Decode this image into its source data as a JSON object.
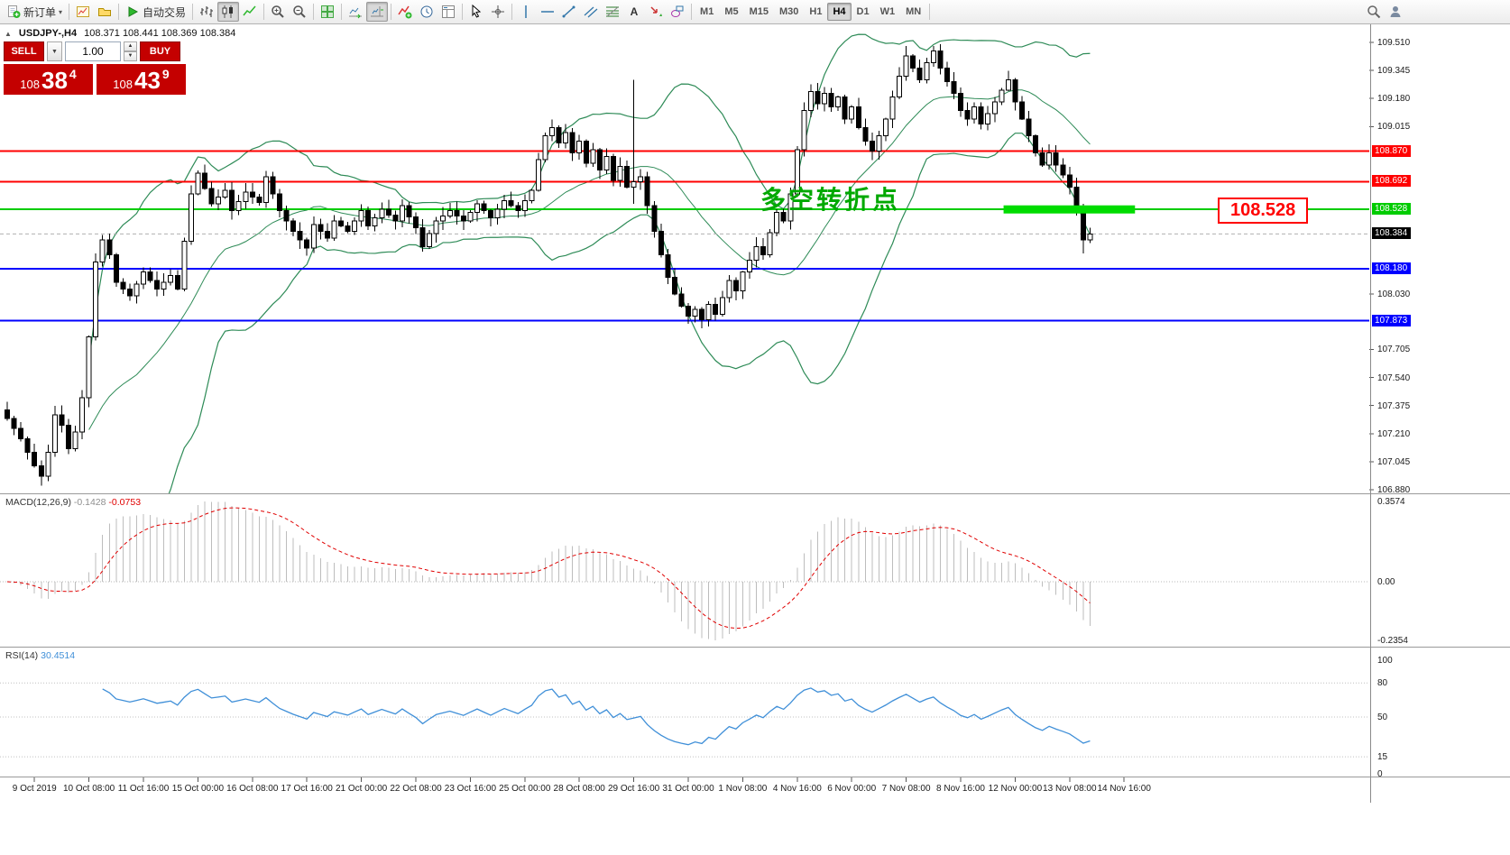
{
  "toolbar": {
    "timeframes": [
      "M1",
      "M5",
      "M15",
      "M30",
      "H1",
      "H4",
      "D1",
      "W1",
      "MN"
    ],
    "active_timeframe": "H4",
    "groups": [
      {
        "items": [
          {
            "name": "new-order",
            "icon": "doc",
            "label": "新订单",
            "dropdown": true
          }
        ]
      },
      {
        "items": [
          {
            "name": "new-chart",
            "icon": "chartplus"
          },
          {
            "name": "profiles",
            "icon": "folder"
          }
        ]
      },
      {
        "items": [
          {
            "name": "auto-trading",
            "icon": "play",
            "label": "自动交易"
          }
        ]
      },
      {
        "items": [
          {
            "name": "bar-chart-mode",
            "icon": "bars"
          },
          {
            "name": "candlestick-mode",
            "icon": "candles",
            "active": true
          },
          {
            "name": "line-chart-mode",
            "icon": "line"
          }
        ]
      },
      {
        "items": [
          {
            "name": "zoom-in",
            "icon": "zoomin"
          },
          {
            "name": "zoom-out",
            "icon": "zoomout"
          }
        ]
      },
      {
        "items": [
          {
            "name": "tile-windows",
            "icon": "grid"
          }
        ]
      },
      {
        "items": [
          {
            "name": "auto-scroll",
            "icon": "autoscroll"
          },
          {
            "name": "chart-shift",
            "icon": "shift",
            "active": true
          }
        ]
      },
      {
        "items": [
          {
            "name": "indicators-list",
            "icon": "indicator"
          },
          {
            "name": "periods",
            "icon": "clock"
          },
          {
            "name": "templates",
            "icon": "template"
          }
        ]
      },
      {
        "items": [
          {
            "name": "cursor-tool",
            "icon": "cursor"
          },
          {
            "name": "crosshair-tool",
            "icon": "crosshair"
          }
        ]
      },
      {
        "items": [
          {
            "name": "vertical-line-tool",
            "icon": "vline"
          },
          {
            "name": "horizontal-line-tool",
            "icon": "hline"
          },
          {
            "name": "trendline-tool",
            "icon": "tline"
          },
          {
            "name": "channel-tool",
            "icon": "channel"
          },
          {
            "name": "fibonacci-tool",
            "icon": "fibo"
          },
          {
            "name": "text-tool",
            "icon": "textA"
          },
          {
            "name": "arrows-tool",
            "icon": "arrowobj"
          },
          {
            "name": "shapes-tool",
            "icon": "shapes"
          }
        ]
      },
      {
        "timeframes": true
      },
      {
        "right": true,
        "items": [
          {
            "name": "search",
            "icon": "magnifier"
          },
          {
            "name": "community",
            "icon": "person"
          }
        ]
      }
    ]
  },
  "chart_header": {
    "symbol_period": "USDJPY-,H4",
    "ohlc": "108.371 108.441 108.369 108.384"
  },
  "trade_panel": {
    "sell_label": "SELL",
    "buy_label": "BUY",
    "lot_size": "1.00",
    "sell_price": {
      "big": "108",
      "pips": "38",
      "sup": "4"
    },
    "buy_price": {
      "big": "108",
      "pips": "43",
      "sup": "9"
    }
  },
  "annotations": {
    "pivot_text": "多空转折点",
    "pivot_label": "108.528"
  },
  "indicators": {
    "macd": {
      "label": "MACD(12,26,9)",
      "value_main": "-0.1428",
      "value_signal": "-0.0753",
      "axis": [
        "0.3574",
        "0.00",
        "-0.2354"
      ]
    },
    "rsi": {
      "label": "RSI(14)",
      "value": "30.4514",
      "axis": [
        "100",
        "80",
        "50",
        "15",
        "0"
      ],
      "levels": [
        80,
        50,
        15
      ]
    }
  },
  "price_axis": {
    "plain": [
      "109.510",
      "109.345",
      "109.180",
      "109.015",
      "108.030",
      "107.705",
      "107.540",
      "107.375",
      "107.210",
      "107.045",
      "106.880"
    ],
    "levels": [
      {
        "label": "108.870",
        "color": "#FF0000",
        "width": 2
      },
      {
        "label": "108.692",
        "color": "#FF0000",
        "width": 2
      },
      {
        "label": "108.528",
        "color": "#00CC00",
        "width": 2
      },
      {
        "label": "108.180",
        "color": "#0000FF",
        "width": 2
      },
      {
        "label": "107.873",
        "color": "#0000FF",
        "width": 2
      }
    ],
    "current": {
      "label": "108.384",
      "color": "#000000"
    }
  },
  "time_axis": {
    "first_label_bar": 4,
    "bars_per_label": 8,
    "labels": [
      "9 Oct 2019",
      "10 Oct 08:00",
      "11 Oct 16:00",
      "15 Oct 00:00",
      "16 Oct 08:00",
      "17 Oct 16:00",
      "21 Oct 00:00",
      "22 Oct 08:00",
      "23 Oct 16:00",
      "25 Oct 00:00",
      "28 Oct 08:00",
      "29 Oct 16:00",
      "31 Oct 00:00",
      "1 Nov 08:00",
      "4 Nov 16:00",
      "6 Nov 00:00",
      "7 Nov 08:00",
      "8 Nov 16:00",
      "12 Nov 00:00",
      "13 Nov 08:00",
      "14 Nov 16:00"
    ]
  },
  "colors": {
    "bull": "#FFFFFF",
    "bear": "#000000",
    "wick": "#000000",
    "bollinger": "#2E8B57",
    "macd_hist": "#BDBDBD",
    "macd_signal": "#E00000",
    "rsi": "#3F8FD8",
    "highlight": "#00DC00",
    "annotation_green": "#00A800",
    "label_red": "#FF0000",
    "panel_red": "#C40000",
    "current_dash": "#B0B0B0"
  },
  "chart_data": {
    "type": "candlestick",
    "symbol": "USDJPY-",
    "timeframe": "H4",
    "current_ohlc": {
      "open": 108.371,
      "high": 108.441,
      "low": 108.369,
      "close": 108.384
    },
    "bars_total": 160,
    "close_waypoints": [
      [
        0,
        107.3
      ],
      [
        2,
        107.18
      ],
      [
        4,
        107.02
      ],
      [
        5,
        106.96
      ],
      [
        6,
        107.1
      ],
      [
        7,
        107.32
      ],
      [
        8,
        107.26
      ],
      [
        9,
        107.12
      ],
      [
        10,
        107.22
      ],
      [
        11,
        107.42
      ],
      [
        12,
        107.78
      ],
      [
        13,
        108.22
      ],
      [
        14,
        108.35
      ],
      [
        15,
        108.26
      ],
      [
        16,
        108.1
      ],
      [
        18,
        108.02
      ],
      [
        20,
        108.16
      ],
      [
        22,
        108.06
      ],
      [
        24,
        108.14
      ],
      [
        25,
        108.06
      ],
      [
        26,
        108.34
      ],
      [
        27,
        108.62
      ],
      [
        28,
        108.74
      ],
      [
        30,
        108.56
      ],
      [
        32,
        108.64
      ],
      [
        33,
        108.52
      ],
      [
        35,
        108.63
      ],
      [
        37,
        108.57
      ],
      [
        38,
        108.72
      ],
      [
        40,
        108.52
      ],
      [
        42,
        108.4
      ],
      [
        44,
        108.3
      ],
      [
        45,
        108.44
      ],
      [
        47,
        108.36
      ],
      [
        48,
        108.46
      ],
      [
        50,
        108.4
      ],
      [
        52,
        108.52
      ],
      [
        53,
        108.43
      ],
      [
        55,
        108.53
      ],
      [
        57,
        108.46
      ],
      [
        58,
        108.55
      ],
      [
        60,
        108.42
      ],
      [
        61,
        108.31
      ],
      [
        63,
        108.46
      ],
      [
        65,
        108.52
      ],
      [
        67,
        108.46
      ],
      [
        69,
        108.56
      ],
      [
        71,
        108.48
      ],
      [
        73,
        108.58
      ],
      [
        75,
        108.52
      ],
      [
        77,
        108.64
      ],
      [
        78,
        108.82
      ],
      [
        79,
        108.96
      ],
      [
        80,
        109.01
      ],
      [
        81,
        108.92
      ],
      [
        82,
        108.98
      ],
      [
        83,
        108.86
      ],
      [
        84,
        108.93
      ],
      [
        85,
        108.8
      ],
      [
        86,
        108.88
      ],
      [
        87,
        108.76
      ],
      [
        88,
        108.84
      ],
      [
        89,
        108.7
      ],
      [
        90,
        108.78
      ],
      [
        91,
        108.66
      ],
      [
        92,
        108.69
      ],
      [
        93,
        108.72
      ],
      [
        94,
        108.55
      ],
      [
        95,
        108.4
      ],
      [
        96,
        108.26
      ],
      [
        97,
        108.13
      ],
      [
        98,
        108.03
      ],
      [
        99,
        107.96
      ],
      [
        100,
        107.9
      ],
      [
        101,
        107.94
      ],
      [
        102,
        107.88
      ],
      [
        103,
        107.97
      ],
      [
        104,
        107.91
      ],
      [
        105,
        108.01
      ],
      [
        106,
        108.11
      ],
      [
        107,
        108.05
      ],
      [
        108,
        108.16
      ],
      [
        109,
        108.23
      ],
      [
        110,
        108.31
      ],
      [
        111,
        108.26
      ],
      [
        112,
        108.39
      ],
      [
        113,
        108.51
      ],
      [
        114,
        108.46
      ],
      [
        115,
        108.62
      ],
      [
        116,
        108.88
      ],
      [
        117,
        109.11
      ],
      [
        118,
        109.22
      ],
      [
        119,
        109.15
      ],
      [
        120,
        109.21
      ],
      [
        121,
        109.13
      ],
      [
        122,
        109.19
      ],
      [
        123,
        109.06
      ],
      [
        124,
        109.13
      ],
      [
        125,
        109.01
      ],
      [
        126,
        108.93
      ],
      [
        127,
        108.87
      ],
      [
        128,
        108.96
      ],
      [
        129,
        109.06
      ],
      [
        130,
        109.19
      ],
      [
        131,
        109.31
      ],
      [
        132,
        109.43
      ],
      [
        133,
        109.36
      ],
      [
        134,
        109.29
      ],
      [
        135,
        109.39
      ],
      [
        136,
        109.46
      ],
      [
        137,
        109.36
      ],
      [
        138,
        109.28
      ],
      [
        139,
        109.21
      ],
      [
        140,
        109.11
      ],
      [
        141,
        109.06
      ],
      [
        142,
        109.13
      ],
      [
        143,
        109.03
      ],
      [
        144,
        109.09
      ],
      [
        145,
        109.16
      ],
      [
        146,
        109.23
      ],
      [
        147,
        109.29
      ],
      [
        148,
        109.16
      ],
      [
        149,
        109.06
      ],
      [
        150,
        108.96
      ],
      [
        151,
        108.86
      ],
      [
        152,
        108.79
      ],
      [
        153,
        108.86
      ],
      [
        154,
        108.79
      ],
      [
        155,
        108.73
      ],
      [
        156,
        108.66
      ],
      [
        157,
        108.52
      ],
      [
        158,
        108.35
      ],
      [
        159,
        108.384
      ]
    ],
    "special_bars": [
      {
        "index": 92,
        "high": 109.29,
        "low": 108.56
      },
      {
        "index": 116,
        "low": 108.6
      },
      {
        "index": 132,
        "high": 109.49
      },
      {
        "index": 158,
        "low": 108.27
      }
    ],
    "bollinger": {
      "period": 20,
      "deviation": 2
    },
    "highlight_bar": {
      "price": 108.528,
      "bar_from": 146.3,
      "bar_to": 165.6,
      "height": 9
    },
    "indicator_data": [
      {
        "type": "MACD",
        "params": [
          12,
          26,
          9
        ],
        "last_main": -0.1428,
        "last_signal": -0.0753,
        "scale_max": 0.3574,
        "scale_min": -0.2354
      },
      {
        "type": "RSI",
        "params": [
          14
        ],
        "last_value": 30.4514,
        "scale": [
          0,
          100
        ],
        "levels": [
          80,
          50,
          15
        ]
      }
    ]
  }
}
